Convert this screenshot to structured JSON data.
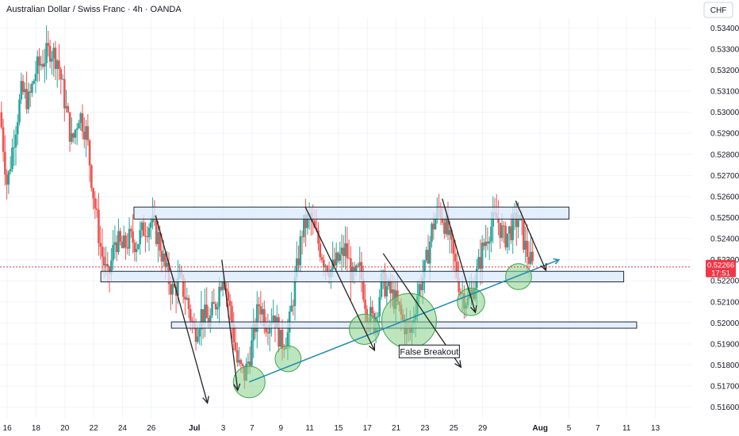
{
  "header": {
    "title": "Australian Dollar / Swiss Franc · 4h · OANDA",
    "currency": "CHF"
  },
  "colors": {
    "up": "#26a69a",
    "down": "#ef5350",
    "zone_fill": "#dbeafe",
    "zone_stroke": "#1f2937",
    "trendline": "#1e88b4",
    "circle_fill": "#86d18a",
    "circle_stroke": "#3fa34a",
    "arrow": "#222222",
    "current_price": "#f23645"
  },
  "price": {
    "current": "0.52266",
    "countdown": "17:51"
  },
  "chart_data": {
    "type": "candlestick",
    "title": "Australian Dollar / Swiss Franc · 4h · OANDA",
    "ylim": [
      0.5155,
      0.5345
    ],
    "y_ticks": [
      "0.53400",
      "0.53300",
      "0.53200",
      "0.53100",
      "0.53000",
      "0.52900",
      "0.52800",
      "0.52700",
      "0.52600",
      "0.52500",
      "0.52400",
      "0.52300",
      "0.52200",
      "0.52100",
      "0.52000",
      "0.51900",
      "0.51800",
      "0.51700",
      "0.51600"
    ],
    "x_ticks": [
      {
        "label": "16",
        "pos": 0.5
      },
      {
        "label": "18",
        "pos": 2.5
      },
      {
        "label": "20",
        "pos": 4.5
      },
      {
        "label": "22",
        "pos": 6.5
      },
      {
        "label": "24",
        "pos": 8.5
      },
      {
        "label": "26",
        "pos": 10.5
      },
      {
        "label": "Jul",
        "pos": 13.5,
        "bold": true
      },
      {
        "label": "3",
        "pos": 15.5
      },
      {
        "label": "7",
        "pos": 17.5
      },
      {
        "label": "9",
        "pos": 19.5
      },
      {
        "label": "11",
        "pos": 21.5
      },
      {
        "label": "15",
        "pos": 23.5
      },
      {
        "label": "17",
        "pos": 25.5
      },
      {
        "label": "21",
        "pos": 27.5
      },
      {
        "label": "23",
        "pos": 29.5
      },
      {
        "label": "25",
        "pos": 31.5
      },
      {
        "label": "29",
        "pos": 33.5
      },
      {
        "label": "Aug",
        "pos": 37.5,
        "bold": true
      },
      {
        "label": "5",
        "pos": 39.5
      },
      {
        "label": "7",
        "pos": 41.5
      },
      {
        "label": "11",
        "pos": 43.5
      },
      {
        "label": "13",
        "pos": 45.5
      }
    ],
    "x_domain": [
      0,
      48
    ],
    "price_path": [
      [
        0,
        0.53
      ],
      [
        0.5,
        0.5265
      ],
      [
        1,
        0.529
      ],
      [
        1.5,
        0.531
      ],
      [
        2,
        0.5305
      ],
      [
        2.5,
        0.532
      ],
      [
        3,
        0.5325
      ],
      [
        3.5,
        0.533
      ],
      [
        4,
        0.5325
      ],
      [
        4.5,
        0.5305
      ],
      [
        5,
        0.5285
      ],
      [
        5.5,
        0.53
      ],
      [
        6,
        0.529
      ],
      [
        6.5,
        0.526
      ],
      [
        7,
        0.5235
      ],
      [
        7.5,
        0.522
      ],
      [
        8,
        0.524
      ],
      [
        8.5,
        0.5235
      ],
      [
        9,
        0.524
      ],
      [
        9.5,
        0.5238
      ],
      [
        10,
        0.5245
      ],
      [
        10.5,
        0.5248
      ],
      [
        11,
        0.524
      ],
      [
        11.5,
        0.5225
      ],
      [
        12,
        0.5215
      ],
      [
        12.5,
        0.522
      ],
      [
        13,
        0.521
      ],
      [
        13.5,
        0.5195
      ],
      [
        14,
        0.5205
      ],
      [
        14.5,
        0.52
      ],
      [
        15,
        0.521
      ],
      [
        15.5,
        0.5225
      ],
      [
        16,
        0.5205
      ],
      [
        16.5,
        0.518
      ],
      [
        17,
        0.5175
      ],
      [
        17.5,
        0.519
      ],
      [
        18,
        0.521
      ],
      [
        18.5,
        0.52
      ],
      [
        19,
        0.5205
      ],
      [
        19.5,
        0.519
      ],
      [
        20,
        0.5195
      ],
      [
        20.5,
        0.522
      ],
      [
        21,
        0.5245
      ],
      [
        21.5,
        0.525
      ],
      [
        22,
        0.524
      ],
      [
        22.5,
        0.523
      ],
      [
        23,
        0.5225
      ],
      [
        23.5,
        0.523
      ],
      [
        24,
        0.5235
      ],
      [
        24.5,
        0.522
      ],
      [
        25,
        0.5225
      ],
      [
        25.5,
        0.5205
      ],
      [
        26,
        0.52
      ],
      [
        26.5,
        0.522
      ],
      [
        27,
        0.5215
      ],
      [
        27.5,
        0.521
      ],
      [
        28,
        0.52
      ],
      [
        28.5,
        0.5195
      ],
      [
        29,
        0.5215
      ],
      [
        29.5,
        0.5225
      ],
      [
        30,
        0.5245
      ],
      [
        30.5,
        0.5255
      ],
      [
        31,
        0.5245
      ],
      [
        31.5,
        0.523
      ],
      [
        32,
        0.5215
      ],
      [
        32.5,
        0.521
      ],
      [
        33,
        0.522
      ],
      [
        33.5,
        0.5235
      ],
      [
        34,
        0.5245
      ],
      [
        34.5,
        0.525
      ],
      [
        35,
        0.524
      ],
      [
        35.5,
        0.5245
      ],
      [
        36,
        0.525
      ],
      [
        36.5,
        0.5235
      ],
      [
        37,
        0.5226
      ]
    ],
    "zones": [
      {
        "x0": 9.3,
        "x1": 39.5,
        "y0": 0.52493,
        "y1": 0.5255
      },
      {
        "x0": 7.0,
        "x1": 43.3,
        "y0": 0.52195,
        "y1": 0.52245
      },
      {
        "x0": 11.9,
        "x1": 44.2,
        "y0": 0.51975,
        "y1": 0.52005
      }
    ],
    "trendline": [
      [
        17.3,
        0.5172
      ],
      [
        38.8,
        0.523
      ]
    ],
    "circles": [
      {
        "x": 17.3,
        "y": 0.5172,
        "r": 1.1
      },
      {
        "x": 20.0,
        "y": 0.5183,
        "r": 0.9
      },
      {
        "x": 25.3,
        "y": 0.5197,
        "r": 1.05
      },
      {
        "x": 28.4,
        "y": 0.5201,
        "r": 1.9
      },
      {
        "x": 32.7,
        "y": 0.521,
        "r": 0.95
      },
      {
        "x": 36.0,
        "y": 0.5222,
        "r": 0.9
      }
    ],
    "arrows": [
      {
        "from": [
          10.8,
          0.5251
        ],
        "to": [
          14.4,
          0.5162
        ]
      },
      {
        "from": [
          15.4,
          0.523
        ],
        "to": [
          16.5,
          0.5168
        ]
      },
      {
        "from": [
          21.2,
          0.5255
        ],
        "to": [
          26.0,
          0.5187
        ]
      },
      {
        "from": [
          26.6,
          0.5233
        ],
        "to": [
          32.0,
          0.5179
        ]
      },
      {
        "from": [
          30.7,
          0.5259
        ],
        "to": [
          33.0,
          0.5205
        ]
      },
      {
        "from": [
          35.8,
          0.5258
        ],
        "to": [
          37.9,
          0.5225
        ]
      }
    ],
    "annotation": {
      "text": "False Breakout",
      "x": 29.8,
      "y": 0.51865
    }
  }
}
